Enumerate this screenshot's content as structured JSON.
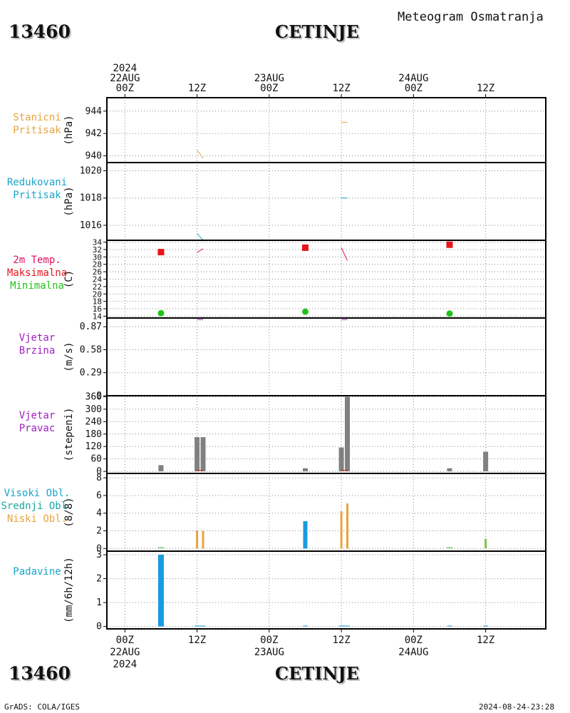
{
  "header": {
    "station_id": "13460",
    "station_name": "CETINJE",
    "title": "Meteogram Osmatranja"
  },
  "footer": {
    "left": "GrADS: COLA/IGES",
    "right": "2024-08-24-23:28"
  },
  "chart_data": {
    "type": "meteogram",
    "x_axis": {
      "top_labels": [
        {
          "hour": 0,
          "lines": [
            "2024",
            "22AUG",
            "00Z"
          ]
        },
        {
          "hour": 12,
          "lines": [
            "12Z"
          ]
        },
        {
          "hour": 24,
          "lines": [
            "23AUG",
            "00Z"
          ]
        },
        {
          "hour": 36,
          "lines": [
            "12Z"
          ]
        },
        {
          "hour": 48,
          "lines": [
            "24AUG",
            "00Z"
          ]
        },
        {
          "hour": 60,
          "lines": [
            "12Z"
          ]
        }
      ],
      "bottom_labels": [
        {
          "hour": 0,
          "lines": [
            "00Z",
            "22AUG",
            "2024"
          ]
        },
        {
          "hour": 12,
          "lines": [
            "12Z"
          ]
        },
        {
          "hour": 24,
          "lines": [
            "00Z",
            "23AUG"
          ]
        },
        {
          "hour": 36,
          "lines": [
            "12Z"
          ]
        },
        {
          "hour": 48,
          "lines": [
            "00Z",
            "24AUG"
          ]
        },
        {
          "hour": 60,
          "lines": [
            "12Z"
          ]
        }
      ],
      "xlim_hours": [
        -3,
        70
      ],
      "grid": true
    },
    "panels": [
      {
        "key": "station_pressure",
        "labels": [
          {
            "text": "Stanicni",
            "color": "#e8a33c"
          },
          {
            "text": "Pritisak",
            "color": "#e8a33c"
          }
        ],
        "unit": "(hPa)",
        "ylim": [
          939.4,
          945.2
        ],
        "ticks": [
          940,
          942,
          944
        ],
        "series": [
          {
            "color": "#e8a33c",
            "segments": [
              [
                [
                  12,
                  940.5
                ],
                [
                  13,
                  939.8
                ]
              ],
              [
                [
                  36,
                  943.0
                ],
                [
                  37,
                  943.0
                ]
              ]
            ]
          }
        ]
      },
      {
        "key": "reduced_pressure",
        "labels": [
          {
            "text": "Redukovani",
            "color": "#1aa3c9"
          },
          {
            "text": "Pritisak",
            "color": "#1aa3c9"
          }
        ],
        "unit": "(hPa)",
        "ylim": [
          1014.9,
          1020.6
        ],
        "ticks": [
          1016,
          1018,
          1020
        ],
        "series": [
          {
            "color": "#1aa3c9",
            "segments": [
              [
                [
                  12,
                  1015.4
                ],
                [
                  13,
                  1014.9
                ]
              ],
              [
                [
                  36,
                  1018.0
                ],
                [
                  37,
                  1018.0
                ]
              ]
            ]
          }
        ]
      },
      {
        "key": "temperature",
        "labels": [
          {
            "text": "2m Temp.",
            "color": "#e0115f"
          },
          {
            "text": "Maksimalna",
            "color": "#e8141a"
          },
          {
            "text": "Minimalna",
            "color": "#22c21a"
          }
        ],
        "unit": "(C)",
        "ylim": [
          13.5,
          34.5
        ],
        "ticks": [
          14,
          16,
          18,
          20,
          22,
          24,
          26,
          28,
          30,
          32,
          34
        ],
        "series": [
          {
            "color": "#e0115f",
            "segments": [
              [
                [
                  12,
                  31.2
                ],
                [
                  13,
                  32.2
                ]
              ],
              [
                [
                  36,
                  32.5
                ],
                [
                  37,
                  29.0
                ]
              ]
            ]
          }
        ],
        "max_temp": {
          "color": "#e8141a",
          "points": [
            [
              6,
              31.3
            ],
            [
              30,
              32.5
            ],
            [
              54,
              33.3
            ]
          ]
        },
        "min_temp": {
          "color": "#22c21a",
          "points": [
            [
              6,
              14.8
            ],
            [
              30,
              15.2
            ],
            [
              54,
              14.7
            ]
          ]
        }
      },
      {
        "key": "wind_speed",
        "labels": [
          {
            "text": "Vjetar",
            "color": "#a020c0"
          },
          {
            "text": "Brzina",
            "color": "#a020c0"
          }
        ],
        "unit": "(m/s)",
        "ylim": [
          0,
          0.98
        ],
        "ticks": [
          0,
          0.29,
          0.58,
          0.87
        ],
        "series": [
          {
            "color": "#a020c0",
            "segments": [
              [
                [
                  12,
                  0.96
                ],
                [
                  13,
                  0.96
                ]
              ],
              [
                [
                  36,
                  0.96
                ],
                [
                  37,
                  0.96
                ]
              ]
            ]
          }
        ]
      },
      {
        "key": "wind_direction",
        "labels": [
          {
            "text": "Vjetar",
            "color": "#a020c0"
          },
          {
            "text": "Pravac",
            "color": "#a020c0"
          }
        ],
        "unit": "(stepeni)",
        "ylim": [
          -10,
          365
        ],
        "ticks": [
          0,
          60,
          120,
          180,
          240,
          300,
          360
        ],
        "bars": [
          {
            "x": 6,
            "value": 30,
            "color": "#808080"
          },
          {
            "x": 12,
            "value": 165,
            "color": "#808080"
          },
          {
            "x": 13,
            "value": 165,
            "color": "#808080"
          },
          {
            "x": 30,
            "value": 15,
            "color": "#808080"
          },
          {
            "x": 36,
            "value": 115,
            "color": "#808080"
          },
          {
            "x": 37,
            "value": 360,
            "color": "#808080"
          },
          {
            "x": 54,
            "value": 15,
            "color": "#808080"
          },
          {
            "x": 60,
            "value": 95,
            "color": "#808080"
          }
        ],
        "series": [
          {
            "color": "#e8141a",
            "segments": [
              [
                [
                  12,
                  5
                ],
                [
                  13,
                  5
                ]
              ],
              [
                [
                  36,
                  5
                ],
                [
                  37,
                  5
                ]
              ]
            ]
          }
        ]
      },
      {
        "key": "cloud_cover",
        "labels": [
          {
            "text": "Visoki Obl.",
            "color": "#1aa3c9"
          },
          {
            "text": "Srednji Obl.",
            "color": "#1aa8a0"
          },
          {
            "text": "Niski Obl.",
            "color": "#e8a33c"
          }
        ],
        "unit": "(8/8)",
        "ylim": [
          -0.3,
          8.5
        ],
        "ticks": [
          0,
          2,
          4,
          6,
          8
        ],
        "bars": [
          {
            "x": 12,
            "value": 2.0,
            "color": "#e8a33c",
            "width": 3
          },
          {
            "x": 13,
            "value": 2.0,
            "color": "#e8a33c",
            "width": 3
          },
          {
            "x": 30,
            "value": 3.1,
            "color": "#1a9ae0",
            "width": 6
          },
          {
            "x": 36,
            "value": 4.2,
            "color": "#e8a33c",
            "width": 3
          },
          {
            "x": 37,
            "value": 5.1,
            "color": "#e8a33c",
            "width": 3
          },
          {
            "x": 60,
            "value": 1.1,
            "color": "#7dc242",
            "width": 3
          }
        ],
        "series": [
          {
            "color": "#2cb84a",
            "segments": [
              [
                [
                  5.5,
                  0.1
                ],
                [
                  6.5,
                  0.1
                ]
              ],
              [
                [
                  53.5,
                  0.1
                ],
                [
                  54.5,
                  0.1
                ]
              ]
            ]
          }
        ]
      },
      {
        "key": "precipitation",
        "labels": [
          {
            "text": "Padavine",
            "color": "#1aa3c9"
          }
        ],
        "unit": "(mm/6h/12h)",
        "ylim": [
          -0.1,
          3.15
        ],
        "ticks": [
          0,
          1,
          2,
          3
        ],
        "bars": [
          {
            "x": 6,
            "value": 3.0,
            "color": "#1a9ae0",
            "width": 8
          }
        ],
        "series": [
          {
            "color": "#1a9ae0",
            "segments": [
              [
                [
                  11.6,
                  0.02
                ],
                [
                  13.4,
                  0.02
                ]
              ],
              [
                [
                  29.6,
                  0.02
                ],
                [
                  30.4,
                  0.02
                ]
              ],
              [
                [
                  35.6,
                  0.02
                ],
                [
                  37.4,
                  0.02
                ]
              ],
              [
                [
                  53.6,
                  0.02
                ],
                [
                  54.4,
                  0.02
                ]
              ],
              [
                [
                  59.6,
                  0.02
                ],
                [
                  60.4,
                  0.02
                ]
              ]
            ]
          }
        ]
      }
    ]
  }
}
